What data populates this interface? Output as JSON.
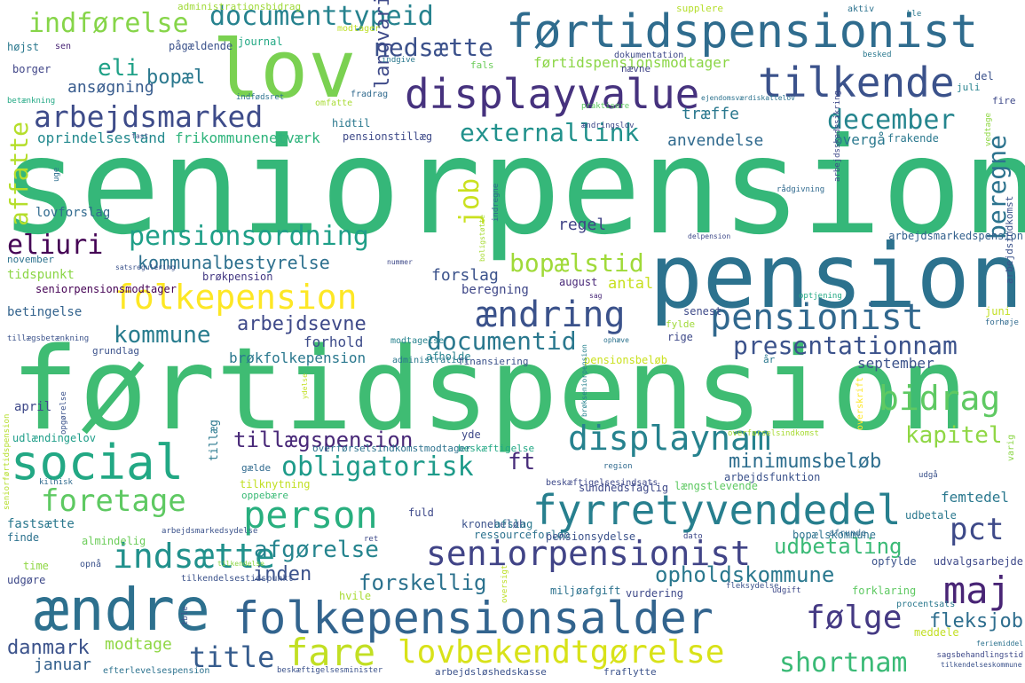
{
  "words": [
    {
      "text": "seniorpension",
      "color": "#35b779"
    },
    {
      "text": "førtidspension",
      "color": "#3fbc73"
    },
    {
      "text": "pension",
      "color": "#2c728e"
    },
    {
      "text": "lov",
      "color": "#7ad151"
    },
    {
      "text": "førtidspensionist",
      "color": "#2f6c8e"
    },
    {
      "text": "displayvalue",
      "color": "#46327e"
    },
    {
      "text": "tilkende",
      "color": "#3b528b"
    },
    {
      "text": "arbejdsmarked",
      "color": "#3e4c8a"
    },
    {
      "text": "documenttypeid",
      "color": "#26828e"
    },
    {
      "text": "indførelse",
      "color": "#86d549"
    },
    {
      "text": "nedsætte",
      "color": "#3b518b"
    },
    {
      "text": "eli",
      "color": "#1fa187"
    },
    {
      "text": "bopæl",
      "color": "#2a788e"
    },
    {
      "text": "ansøgning",
      "color": "#375b8d"
    },
    {
      "text": "december",
      "color": "#25858e"
    },
    {
      "text": "externallink",
      "color": "#21918c"
    },
    {
      "text": "folkepension",
      "color": "#fde725"
    },
    {
      "text": "pensionsordning",
      "color": "#1f9f88"
    },
    {
      "text": "eliuri",
      "color": "#440154"
    },
    {
      "text": "kommunalbestyrelse",
      "color": "#2d708e"
    },
    {
      "text": "bopælstid",
      "color": "#a0da39"
    },
    {
      "text": "ændring",
      "color": "#3b528b"
    },
    {
      "text": "pensionist",
      "color": "#31688e"
    },
    {
      "text": "kommune",
      "color": "#287c8e"
    },
    {
      "text": "documentid",
      "color": "#2a788e"
    },
    {
      "text": "presentationnam",
      "color": "#3b528b"
    },
    {
      "text": "arbejdsevne",
      "color": "#3e4989"
    },
    {
      "text": "social",
      "color": "#22a884"
    },
    {
      "text": "bidrag",
      "color": "#5ec962"
    },
    {
      "text": "kapitel",
      "color": "#8fd744"
    },
    {
      "text": "tillægspension",
      "color": "#482878"
    },
    {
      "text": "displaynam",
      "color": "#26828e"
    },
    {
      "text": "obligatorisk",
      "color": "#1e9b8a"
    },
    {
      "text": "minimumsbeløb",
      "color": "#2e6e8e"
    },
    {
      "text": "foretage",
      "color": "#5ec962"
    },
    {
      "text": "person",
      "color": "#29af7f"
    },
    {
      "text": "fyrretyvendedel",
      "color": "#277f8e"
    },
    {
      "text": "seniorpensionist",
      "color": "#414487"
    },
    {
      "text": "pct",
      "color": "#3e4a89"
    },
    {
      "text": "indsætte",
      "color": "#21918c"
    },
    {
      "text": "afgørelse",
      "color": "#25848e"
    },
    {
      "text": "inden",
      "color": "#3b528b"
    },
    {
      "text": "forskellig",
      "color": "#2c728e"
    },
    {
      "text": "opholdskommune",
      "color": "#2a788e"
    },
    {
      "text": "udbetaling",
      "color": "#3aba76"
    },
    {
      "text": "maj",
      "color": "#482475"
    },
    {
      "text": "ændre",
      "color": "#2d708e"
    },
    {
      "text": "folkepensionsalder",
      "color": "#32648e"
    },
    {
      "text": "følge",
      "color": "#443983"
    },
    {
      "text": "fleksjob",
      "color": "#2e6e8e"
    },
    {
      "text": "fare",
      "color": "#c2df23"
    },
    {
      "text": "lovbekendtgørelse",
      "color": "#d8e219"
    },
    {
      "text": "title",
      "color": "#365c8d"
    },
    {
      "text": "shortnam",
      "color": "#3aba76"
    },
    {
      "text": "danmark",
      "color": "#3b528b"
    },
    {
      "text": "januar",
      "color": "#34618d"
    },
    {
      "text": "modtage",
      "color": "#8fd744"
    },
    {
      "text": "ft",
      "color": "#472c7a"
    },
    {
      "text": "job",
      "color": "#cae11f"
    },
    {
      "text": "beregne",
      "color": "#2c738e"
    },
    {
      "text": "affatte",
      "color": "#b5de2b"
    },
    {
      "text": "langvarig",
      "color": "#3e4a89"
    },
    {
      "text": "træffe",
      "color": "#2a788e"
    },
    {
      "text": "overgå",
      "color": "#2a788e"
    },
    {
      "text": "anvendelse",
      "color": "#306a8e"
    },
    {
      "text": "førtidspensionsmodtager",
      "color": "#8bd646"
    },
    {
      "text": "regel",
      "color": "#414487"
    },
    {
      "text": "antal",
      "color": "#c8e020"
    },
    {
      "text": "forslag",
      "color": "#3b528b"
    },
    {
      "text": "beregning",
      "color": "#3f4788"
    },
    {
      "text": "august",
      "color": "#482878"
    },
    {
      "text": "senest",
      "color": "#3e4a89"
    },
    {
      "text": "betingelse",
      "color": "#33638d"
    },
    {
      "text": "forhold",
      "color": "#3e4c8a"
    },
    {
      "text": "brøkfolkepension",
      "color": "#2a788e"
    },
    {
      "text": "september",
      "color": "#3b528b"
    },
    {
      "text": "femtedel",
      "color": "#2a788e"
    },
    {
      "text": "oprindelsesland",
      "color": "#23898e"
    },
    {
      "text": "frikommunenetværk",
      "color": "#2fb47c"
    },
    {
      "text": "pensionstillæg",
      "color": "#3e4a89"
    },
    {
      "text": "hidtil",
      "color": "#2a788e"
    },
    {
      "text": "lovforslag",
      "color": "#306a8e"
    },
    {
      "text": "tidspunkt",
      "color": "#8bd646"
    },
    {
      "text": "seniorpensionsmodtager",
      "color": "#440154"
    },
    {
      "text": "brøkpension",
      "color": "#443983"
    },
    {
      "text": "november",
      "color": "#2c728e"
    },
    {
      "text": "borger",
      "color": "#404688"
    },
    {
      "text": "højst",
      "color": "#2a788e"
    },
    {
      "text": "pågældende",
      "color": "#3b528b"
    },
    {
      "text": "journal",
      "color": "#22a884"
    },
    {
      "text": "sen",
      "color": "#482475"
    },
    {
      "text": "administrationsbidrag",
      "color": "#a0da39"
    },
    {
      "text": "supplere",
      "color": "#b5de2b"
    },
    {
      "text": "modtager",
      "color": "#bddf26"
    },
    {
      "text": "aktiv",
      "color": "#2c728e"
    },
    {
      "text": "ble",
      "color": "#2a788e"
    },
    {
      "text": "del",
      "color": "#3b528b"
    },
    {
      "text": "juli",
      "color": "#26828e"
    },
    {
      "text": "fire",
      "color": "#3e4989"
    },
    {
      "text": "fals",
      "color": "#6ccd5a"
    },
    {
      "text": "nævne",
      "color": "#414487"
    },
    {
      "text": "dokumentation",
      "color": "#3e4989"
    },
    {
      "text": "indgive",
      "color": "#2a788e"
    },
    {
      "text": "fradrag",
      "color": "#306a8e"
    },
    {
      "text": "omfatte",
      "color": "#a8db34"
    },
    {
      "text": "indfødsret",
      "color": "#2c728e"
    },
    {
      "text": "betænkning",
      "color": "#22a884"
    },
    {
      "text": "ejendomsværdiskattelov",
      "color": "#2c728e"
    },
    {
      "text": "praktisere",
      "color": "#5ec962"
    },
    {
      "text": "ændringslov",
      "color": "#3e4989"
    },
    {
      "text": "frakende",
      "color": "#2a788e"
    },
    {
      "text": "besked",
      "color": "#2a788e"
    },
    {
      "text": "fast",
      "color": "#3b528b"
    },
    {
      "text": "uge",
      "color": "#2e6e8e"
    },
    {
      "text": "rådgivning",
      "color": "#306a8e"
    },
    {
      "text": "arbejdsmarkedspension",
      "color": "#34618d"
    },
    {
      "text": "delpension",
      "color": "#3e4989"
    },
    {
      "text": "nummer",
      "color": "#3e4989"
    },
    {
      "text": "satsregulering",
      "color": "#3b528b"
    },
    {
      "text": "tillægsbetænkning",
      "color": "#3b528b"
    },
    {
      "text": "grundlag",
      "color": "#3b528b"
    },
    {
      "text": "modtagelse",
      "color": "#26828e"
    },
    {
      "text": "ophæve",
      "color": "#2c728e"
    },
    {
      "text": "fylde",
      "color": "#a0da39"
    },
    {
      "text": "rige",
      "color": "#3e4989"
    },
    {
      "text": "juni",
      "color": "#c2df23"
    },
    {
      "text": "forhøje",
      "color": "#306a8e"
    },
    {
      "text": "optjening",
      "color": "#22a884"
    },
    {
      "text": "sag",
      "color": "#482878"
    },
    {
      "text": "afholde",
      "color": "#26828e"
    },
    {
      "text": "administration",
      "color": "#2a788e"
    },
    {
      "text": "pensionsbeløb",
      "color": "#cae11f"
    },
    {
      "text": "finansiering",
      "color": "#3b528b"
    },
    {
      "text": "år",
      "color": "#2a788e"
    },
    {
      "text": "april",
      "color": "#3e4989"
    },
    {
      "text": "udlændingelov",
      "color": "#1f9e89"
    },
    {
      "text": "yde",
      "color": "#3e4989"
    },
    {
      "text": "beskæftigelse",
      "color": "#22a884"
    },
    {
      "text": "overførselsindkomstmodtager",
      "color": "#2c728e"
    },
    {
      "text": "overførselsindkomst",
      "color": "#a8db34"
    },
    {
      "text": "region",
      "color": "#306a8e"
    },
    {
      "text": "beskæftigelsesindsats",
      "color": "#3e4989"
    },
    {
      "text": "arbejdsfunktion",
      "color": "#3b528b"
    },
    {
      "text": "udgå",
      "color": "#3b528b"
    },
    {
      "text": "gælde",
      "color": "#306a8e"
    },
    {
      "text": "tilknytning",
      "color": "#c2df23"
    },
    {
      "text": "oppebære",
      "color": "#3aba76"
    },
    {
      "text": "sundhedsfaglig",
      "color": "#3e4989"
    },
    {
      "text": "længstlevende",
      "color": "#5ec962"
    },
    {
      "text": "kilnisk",
      "color": "#306a8e"
    },
    {
      "text": "seniorførtidspension",
      "color": "#b5de2b"
    },
    {
      "text": "fastsætte",
      "color": "#2a788e"
    },
    {
      "text": "fuld",
      "color": "#3e4989"
    },
    {
      "text": "kronebeløb",
      "color": "#3b528b"
    },
    {
      "text": "afslag",
      "color": "#2a788e"
    },
    {
      "text": "udbetale",
      "color": "#2a788e"
    },
    {
      "text": "finde",
      "color": "#2c728e"
    },
    {
      "text": "almindelig",
      "color": "#6ccd5a"
    },
    {
      "text": "arbejdsmarkedsydelse",
      "color": "#3b528b"
    },
    {
      "text": "ret",
      "color": "#3e4989"
    },
    {
      "text": "ressourceforløb",
      "color": "#2c728e"
    },
    {
      "text": "pensionsydelse",
      "color": "#3b528b"
    },
    {
      "text": "dato",
      "color": "#3e4989"
    },
    {
      "text": "bopælskommune",
      "color": "#2c728e"
    },
    {
      "text": "afrunde",
      "color": "#306a8e"
    },
    {
      "text": "time",
      "color": "#8fd744"
    },
    {
      "text": "opnå",
      "color": "#3b528b"
    },
    {
      "text": "tilkendelse",
      "color": "#8bd646"
    },
    {
      "text": "opfylde",
      "color": "#3b528b"
    },
    {
      "text": "udvalgsarbejde",
      "color": "#3e4989"
    },
    {
      "text": "udgøre",
      "color": "#3e4989"
    },
    {
      "text": "tilkendelsestidspunkt",
      "color": "#3b528b"
    },
    {
      "text": "hvile",
      "color": "#a8db34"
    },
    {
      "text": "vurdering",
      "color": "#3e4989"
    },
    {
      "text": "miljøafgift",
      "color": "#2c728e"
    },
    {
      "text": "fleksydelse",
      "color": "#3b528b"
    },
    {
      "text": "udgift",
      "color": "#3e4989"
    },
    {
      "text": "forklaring",
      "color": "#5ec962"
    },
    {
      "text": "procentsats",
      "color": "#2a788e"
    },
    {
      "text": "meddele",
      "color": "#c2df23"
    },
    {
      "text": "feriemiddel",
      "color": "#2c728e"
    },
    {
      "text": "sagsbehandlingstid",
      "color": "#3e4989"
    },
    {
      "text": "tilkendelseskommune",
      "color": "#3b528b"
    },
    {
      "text": "efterlevelsespension",
      "color": "#2c728e"
    },
    {
      "text": "beskæftigelsesminister",
      "color": "#3b528b"
    },
    {
      "text": "arbejdsløshedskasse",
      "color": "#3b528b"
    },
    {
      "text": "fraflytte",
      "color": "#3b528b"
    },
    {
      "text": "oversigt",
      "color": "#bddf26"
    },
    {
      "text": "tillæg",
      "color": "#2a788e"
    },
    {
      "text": "opgørelse",
      "color": "#3b528b"
    },
    {
      "text": "arbejdsskadesikring",
      "color": "#3e4989"
    },
    {
      "text": "indregne",
      "color": "#306a8e"
    },
    {
      "text": "vedtage",
      "color": "#8fd744"
    },
    {
      "text": "boligstøtte",
      "color": "#a8db34"
    },
    {
      "text": "ydelse",
      "color": "#c2df23"
    },
    {
      "text": "brøkseniorpension",
      "color": "#26828e"
    },
    {
      "text": "arbejdsindkomst",
      "color": "#3b528b"
    },
    {
      "text": "varig",
      "color": "#8bd646"
    },
    {
      "text": "overskrift",
      "color": "#fde725"
    },
    {
      "text": "tble",
      "color": "#3b528b"
    },
    {
      "text": "nå",
      "color": "#3e4989"
    }
  ]
}
